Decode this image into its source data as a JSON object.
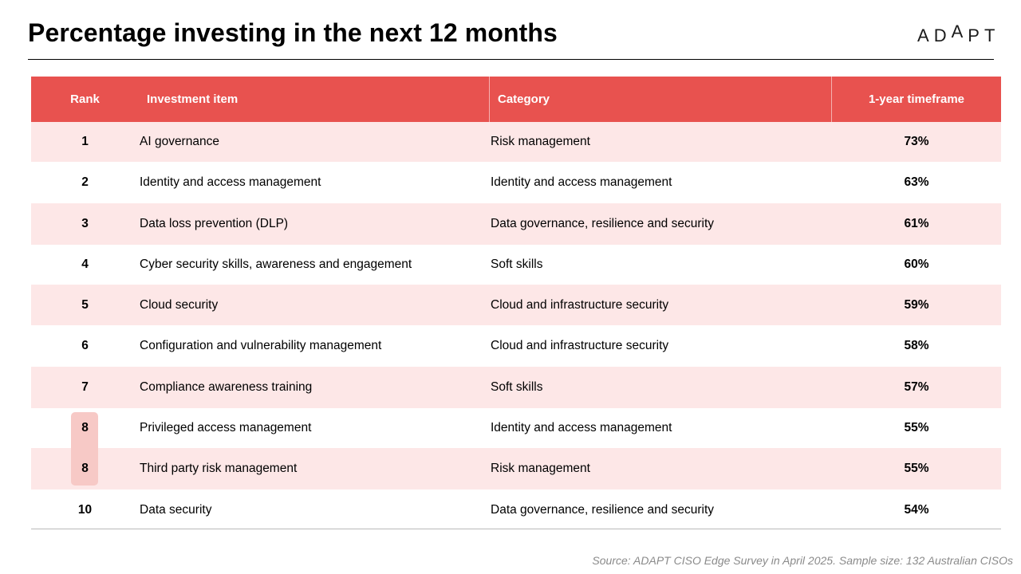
{
  "title": "Percentage investing in the next 12 months",
  "logo": {
    "letters": [
      "A",
      "D",
      "A",
      "P",
      "T"
    ],
    "accent_color": "#e8524f"
  },
  "colors": {
    "header_bg": "#e8524f",
    "row_shade": "#fde7e7",
    "tie_highlight": "#f7c9c6"
  },
  "table": {
    "headers": {
      "rank": "Rank",
      "item": "Investment item",
      "category": "Category",
      "timeframe": "1-year timeframe"
    },
    "rows": [
      {
        "rank": "1",
        "item": "AI governance",
        "category": "Risk management",
        "pct": "73%"
      },
      {
        "rank": "2",
        "item": "Identity and access management",
        "category": "Identity and access management",
        "pct": "63%"
      },
      {
        "rank": "3",
        "item": "Data loss prevention (DLP)",
        "category": "Data governance, resilience and security",
        "pct": "61%"
      },
      {
        "rank": "4",
        "item": "Cyber security skills, awareness and engagement",
        "category": "Soft skills",
        "pct": "60%"
      },
      {
        "rank": "5",
        "item": "Cloud security",
        "category": "Cloud and infrastructure security",
        "pct": "59%"
      },
      {
        "rank": "6",
        "item": "Configuration and vulnerability management",
        "category": "Cloud and infrastructure security",
        "pct": "58%"
      },
      {
        "rank": "7",
        "item": "Compliance awareness training",
        "category": "Soft skills",
        "pct": "57%"
      },
      {
        "rank": "8",
        "item": "Privileged access management",
        "category": "Identity and access management",
        "pct": "55%"
      },
      {
        "rank": "8",
        "item": "Third party risk management",
        "category": "Risk management",
        "pct": "55%"
      },
      {
        "rank": "10",
        "item": "Data security",
        "category": "Data governance, resilience and security",
        "pct": "54%"
      }
    ]
  },
  "source": "Source: ADAPT CISO Edge Survey in April 2025. Sample size: 132 Australian CISOs"
}
